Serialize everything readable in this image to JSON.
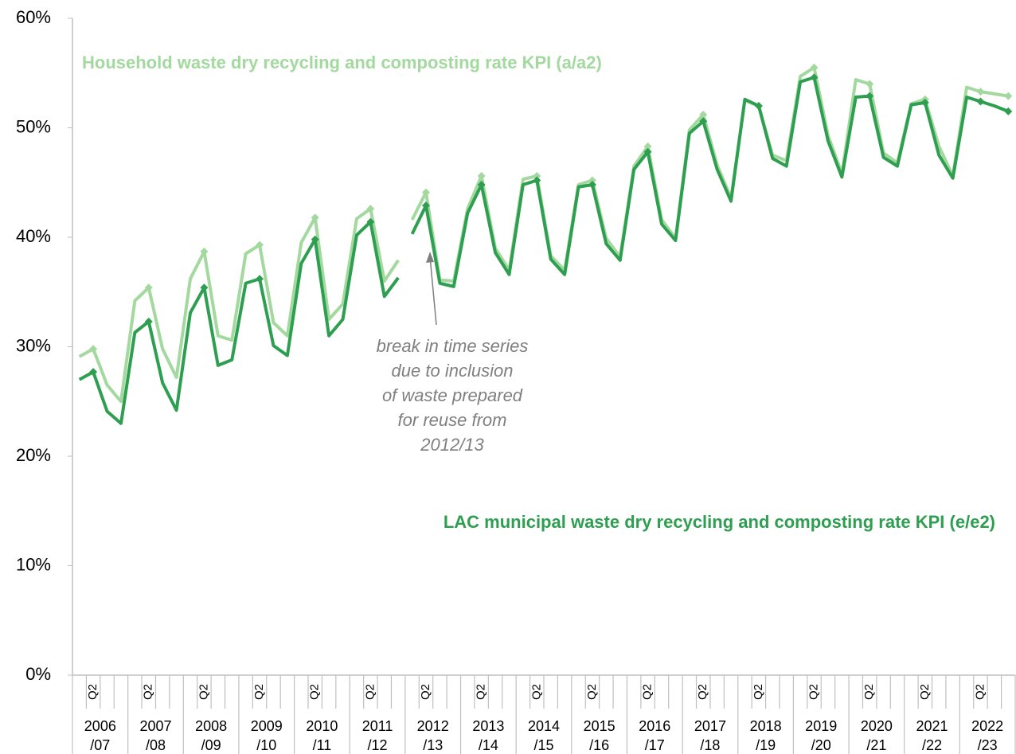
{
  "chart_data": {
    "type": "line",
    "categories": [
      null,
      "Q2",
      null,
      null,
      null,
      "Q2",
      null,
      null,
      null,
      "Q2",
      null,
      null,
      null,
      "Q2",
      null,
      null,
      null,
      "Q2",
      null,
      null,
      null,
      "Q2",
      null,
      null,
      null,
      "Q2",
      null,
      null,
      null,
      "Q2",
      null,
      null,
      null,
      "Q2",
      null,
      null,
      null,
      "Q2",
      null,
      null,
      null,
      "Q2",
      null,
      null,
      null,
      "Q2",
      null,
      null,
      null,
      "Q2",
      null,
      null,
      null,
      "Q2",
      null,
      null,
      null,
      "Q2",
      null,
      null,
      null,
      "Q2",
      null,
      null,
      null,
      "Q2",
      null,
      null
    ],
    "groups": [
      [
        "2006",
        "/07"
      ],
      [
        "2007",
        "/08"
      ],
      [
        "2008",
        "/09"
      ],
      [
        "2009",
        "/10"
      ],
      [
        "2010",
        "/11"
      ],
      [
        "2011",
        "/12"
      ],
      [
        "2012",
        "/13"
      ],
      [
        "2013",
        "/14"
      ],
      [
        "2014",
        "/15"
      ],
      [
        "2015",
        "/16"
      ],
      [
        "2016",
        "/17"
      ],
      [
        "2017",
        "/18"
      ],
      [
        "2018",
        "/19"
      ],
      [
        "2019",
        "/20"
      ],
      [
        "2020",
        "/21"
      ],
      [
        "2021",
        "/22"
      ],
      [
        "2022",
        "/23"
      ]
    ],
    "break_before": 24,
    "series": [
      {
        "name": "Household waste dry recycling and composting rate KPI (a/a2)",
        "color": "#a3d99f",
        "values": [
          29.1,
          29.8,
          26.5,
          25.0,
          34.2,
          35.4,
          29.8,
          27.2,
          36.2,
          38.7,
          31.0,
          30.6,
          38.5,
          39.3,
          32.2,
          31.0,
          39.5,
          41.8,
          32.5,
          33.9,
          41.7,
          42.6,
          36.0,
          37.9,
          41.6,
          44.1,
          36.1,
          36.0,
          42.6,
          45.6,
          39.0,
          37.0,
          45.3,
          45.6,
          38.3,
          37.0,
          44.8,
          45.2,
          39.9,
          38.2,
          46.5,
          48.3,
          41.6,
          39.9,
          49.8,
          51.2,
          46.6,
          43.6,
          52.5,
          52.0,
          47.5,
          47.0,
          54.7,
          55.5,
          49.3,
          45.8,
          54.4,
          54.0,
          47.7,
          46.8,
          52.2,
          52.6,
          48.3,
          45.6,
          53.7,
          53.3,
          53.1,
          52.9
        ]
      },
      {
        "name": "LAC municipal waste dry recycling and composting rate KPI (e/e2)",
        "color": "#2e9f50",
        "values": [
          27.0,
          27.7,
          24.1,
          23.0,
          31.3,
          32.3,
          26.7,
          24.2,
          33.1,
          35.4,
          28.3,
          28.8,
          35.8,
          36.2,
          30.1,
          29.2,
          37.6,
          39.8,
          31.0,
          32.5,
          40.2,
          41.4,
          34.6,
          36.3,
          40.3,
          42.9,
          35.8,
          35.5,
          42.2,
          44.8,
          38.6,
          36.6,
          44.8,
          45.2,
          38.0,
          36.6,
          44.6,
          44.8,
          39.4,
          37.9,
          46.2,
          47.8,
          41.2,
          39.7,
          49.5,
          50.6,
          46.2,
          43.3,
          52.6,
          52.0,
          47.2,
          46.5,
          54.2,
          54.6,
          48.8,
          45.5,
          52.8,
          52.9,
          47.3,
          46.5,
          52.1,
          52.3,
          47.5,
          45.4,
          52.8,
          52.4,
          52.0,
          51.5
        ]
      }
    ],
    "annotations": [
      "break in time series",
      "due to inclusion",
      "of waste prepared",
      "for reuse from",
      "2012/13"
    ],
    "ylim": [
      0,
      60
    ],
    "yticks": [
      {
        "value": 0,
        "label": "0%"
      },
      {
        "value": 10,
        "label": "10%"
      },
      {
        "value": 20,
        "label": "20%"
      },
      {
        "value": 30,
        "label": "30%"
      },
      {
        "value": 40,
        "label": "40%"
      },
      {
        "value": 50,
        "label": "50%"
      },
      {
        "value": 60,
        "label": "60%"
      }
    ]
  }
}
